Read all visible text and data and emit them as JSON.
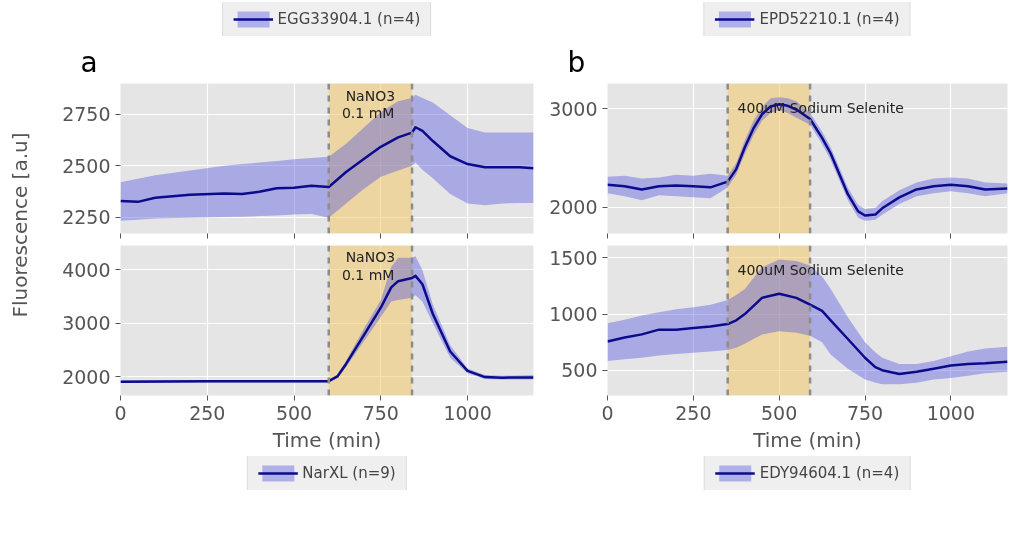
{
  "chart_data": [
    {
      "type": "line",
      "title": "a",
      "ylabel": "Fluorescence [a.u]",
      "legend": "top",
      "grid": true,
      "tick_labels": "y",
      "line_style": "solid",
      "marker": "none",
      "x": [
        0,
        50,
        100,
        200,
        300,
        350,
        400,
        450,
        500,
        550,
        600,
        650,
        700,
        750,
        800,
        840,
        850,
        870,
        900,
        950,
        1000,
        1050,
        1100,
        1150,
        1190
      ],
      "series": [
        {
          "name": "EGG33904.1 (n=4)",
          "color": "#0b0b8c",
          "values": [
            2328,
            2324,
            2344,
            2359,
            2365,
            2362,
            2373,
            2390,
            2393,
            2402,
            2396,
            2469,
            2531,
            2592,
            2638,
            2661,
            2687,
            2669,
            2620,
            2546,
            2508,
            2492,
            2492,
            2492,
            2488
          ],
          "upper": [
            2420,
            2437,
            2454,
            2477,
            2500,
            2508,
            2515,
            2523,
            2531,
            2537,
            2543,
            2607,
            2684,
            2761,
            2814,
            2830,
            2845,
            2830,
            2807,
            2745,
            2684,
            2661,
            2661,
            2661,
            2661
          ],
          "lower": [
            2232,
            2237,
            2243,
            2247,
            2250,
            2252,
            2255,
            2258,
            2262,
            2265,
            2247,
            2316,
            2385,
            2446,
            2477,
            2500,
            2515,
            2480,
            2439,
            2362,
            2316,
            2308,
            2316,
            2318,
            2319
          ]
        }
      ],
      "bands": [
        {
          "axis": "x",
          "from": 600,
          "to": 840,
          "color": "#f2c96a"
        }
      ],
      "ref_lines": [
        {
          "axis": "x",
          "value": 600,
          "color": "#8c8c8c",
          "line_style": "dashed"
        },
        {
          "axis": "x",
          "value": 840,
          "color": "#8c8c8c",
          "line_style": "dashed"
        }
      ],
      "annotations": [
        {
          "text": "NaNO3\n 0.1 mM",
          "x": 720,
          "y": 2880
        }
      ],
      "xlim": [
        0,
        1190
      ],
      "ylim": [
        2170,
        2900
      ],
      "xticks": [
        0,
        250,
        500,
        750,
        1000
      ],
      "yticks": [
        2250,
        2500,
        2750
      ]
    },
    {
      "type": "line",
      "xlabel": "Time (min)",
      "legend": "bottom",
      "grid": true,
      "line_style": "solid",
      "marker": "none",
      "x": [
        0,
        250,
        500,
        600,
        625,
        650,
        700,
        750,
        780,
        800,
        840,
        850,
        870,
        900,
        950,
        1000,
        1050,
        1100,
        1190
      ],
      "series": [
        {
          "name": "NarXL (n=9)",
          "color": "#0b0b8c",
          "values": [
            1907,
            1918,
            1918,
            1918,
            2006,
            2239,
            2764,
            3289,
            3668,
            3784,
            3843,
            3883,
            3726,
            3172,
            2472,
            2111,
            1994,
            1983,
            1988
          ],
          "upper": [
            1930,
            1940,
            1940,
            1940,
            2040,
            2297,
            2880,
            3434,
            4047,
            4222,
            4222,
            4251,
            3988,
            3347,
            2589,
            2152,
            2035,
            2017,
            2035
          ],
          "lower": [
            1889,
            1895,
            1895,
            1895,
            1970,
            2181,
            2647,
            3114,
            3405,
            3434,
            3475,
            3522,
            3405,
            2997,
            2356,
            2064,
            1959,
            1947,
            1950
          ]
        }
      ],
      "bands": [
        {
          "axis": "x",
          "from": 600,
          "to": 840,
          "color": "#f2c96a"
        }
      ],
      "ref_lines": [
        {
          "axis": "x",
          "value": 600,
          "color": "#8c8c8c",
          "line_style": "dashed"
        },
        {
          "axis": "x",
          "value": 840,
          "color": "#8c8c8c",
          "line_style": "dashed"
        }
      ],
      "annotations": [
        {
          "text": "NaNO3\n 0.1 mM",
          "x": 720,
          "y": 4380
        }
      ],
      "xlim": [
        0,
        1190
      ],
      "ylim": [
        1650,
        4450
      ],
      "xticks": [
        0,
        250,
        500,
        750,
        1000
      ],
      "yticks": [
        2000,
        3000,
        4000
      ]
    },
    {
      "type": "line",
      "title": "b",
      "legend": "top",
      "grid": true,
      "tick_labels": "y",
      "line_style": "solid",
      "marker": "none",
      "x": [
        0,
        50,
        100,
        150,
        200,
        250,
        300,
        350,
        375,
        400,
        425,
        450,
        475,
        500,
        525,
        550,
        590,
        625,
        650,
        700,
        730,
        750,
        780,
        800,
        850,
        900,
        950,
        1000,
        1050,
        1100,
        1165
      ],
      "series": [
        {
          "name": "EPD52210.1 (n=4)",
          "color": "#0b0b8c",
          "values": [
            2227,
            2211,
            2179,
            2211,
            2220,
            2211,
            2201,
            2259,
            2387,
            2610,
            2802,
            2946,
            3026,
            3048,
            3032,
            2994,
            2898,
            2706,
            2546,
            2131,
            1955,
            1914,
            1923,
            1987,
            2099,
            2179,
            2211,
            2227,
            2211,
            2179,
            2188
          ],
          "upper": [
            2310,
            2320,
            2290,
            2300,
            2330,
            2320,
            2340,
            2320,
            2450,
            2680,
            2880,
            3020,
            3110,
            3120,
            3110,
            3080,
            2960,
            2770,
            2610,
            2200,
            2020,
            1980,
            1990,
            2060,
            2170,
            2250,
            2290,
            2300,
            2290,
            2250,
            2240
          ],
          "lower": [
            2140,
            2110,
            2070,
            2120,
            2110,
            2100,
            2090,
            2200,
            2330,
            2540,
            2730,
            2880,
            2960,
            2990,
            2960,
            2910,
            2840,
            2640,
            2480,
            2070,
            1890,
            1860,
            1870,
            1920,
            2030,
            2110,
            2140,
            2160,
            2140,
            2110,
            2140
          ]
        }
      ],
      "bands": [
        {
          "axis": "x",
          "from": 350,
          "to": 590,
          "color": "#f2c96a"
        }
      ],
      "ref_lines": [
        {
          "axis": "x",
          "value": 350,
          "color": "#8c8c8c",
          "line_style": "dashed"
        },
        {
          "axis": "x",
          "value": 590,
          "color": "#8c8c8c",
          "line_style": "dashed"
        }
      ],
      "annotations": [
        "400uM Sodium Selenite"
      ],
      "xlim": [
        0,
        1165
      ],
      "ylim": [
        1730,
        3260
      ],
      "xticks": [
        0,
        250,
        500,
        750,
        1000
      ],
      "yticks": [
        2000,
        3000
      ]
    },
    {
      "type": "line",
      "xlabel": "Time (min)",
      "legend": "bottom",
      "grid": true,
      "line_style": "solid",
      "marker": "none",
      "x": [
        0,
        50,
        100,
        150,
        200,
        250,
        300,
        350,
        375,
        400,
        450,
        500,
        550,
        590,
        625,
        650,
        700,
        750,
        780,
        800,
        850,
        900,
        950,
        1000,
        1050,
        1100,
        1165
      ],
      "series": [
        {
          "name": "EDY94604.1 (n=4)",
          "color": "#0b0b8c",
          "values": [
            756,
            792,
            819,
            861,
            861,
            875,
            889,
            911,
            944,
            1000,
            1144,
            1181,
            1144,
            1083,
            1028,
            944,
            778,
            611,
            528,
            500,
            467,
            486,
            514,
            542,
            556,
            561,
            575
          ],
          "upper": [
            917,
            950,
            986,
            1015,
            1042,
            1060,
            1083,
            1125,
            1170,
            1222,
            1417,
            1486,
            1472,
            1431,
            1333,
            1222,
            972,
            750,
            660,
            611,
            556,
            556,
            583,
            625,
            667,
            694,
            708
          ],
          "lower": [
            583,
            597,
            611,
            630,
            644,
            655,
            667,
            681,
            700,
            736,
            819,
            847,
            833,
            806,
            750,
            639,
            514,
            417,
            390,
            375,
            375,
            389,
            417,
            431,
            450,
            472,
            486
          ]
        }
      ],
      "bands": [
        {
          "axis": "x",
          "from": 350,
          "to": 590,
          "color": "#f2c96a"
        }
      ],
      "ref_lines": [
        {
          "axis": "x",
          "value": 350,
          "color": "#8c8c8c",
          "line_style": "dashed"
        },
        {
          "axis": "x",
          "value": 590,
          "color": "#8c8c8c",
          "line_style": "dashed"
        }
      ],
      "annotations": [
        "400uM Sodium Selenite"
      ],
      "xlim": [
        0,
        1165
      ],
      "ylim": [
        275,
        1610
      ],
      "xticks": [
        0,
        250,
        500,
        750,
        1000
      ],
      "yticks": [
        500,
        1000,
        1500
      ]
    }
  ]
}
